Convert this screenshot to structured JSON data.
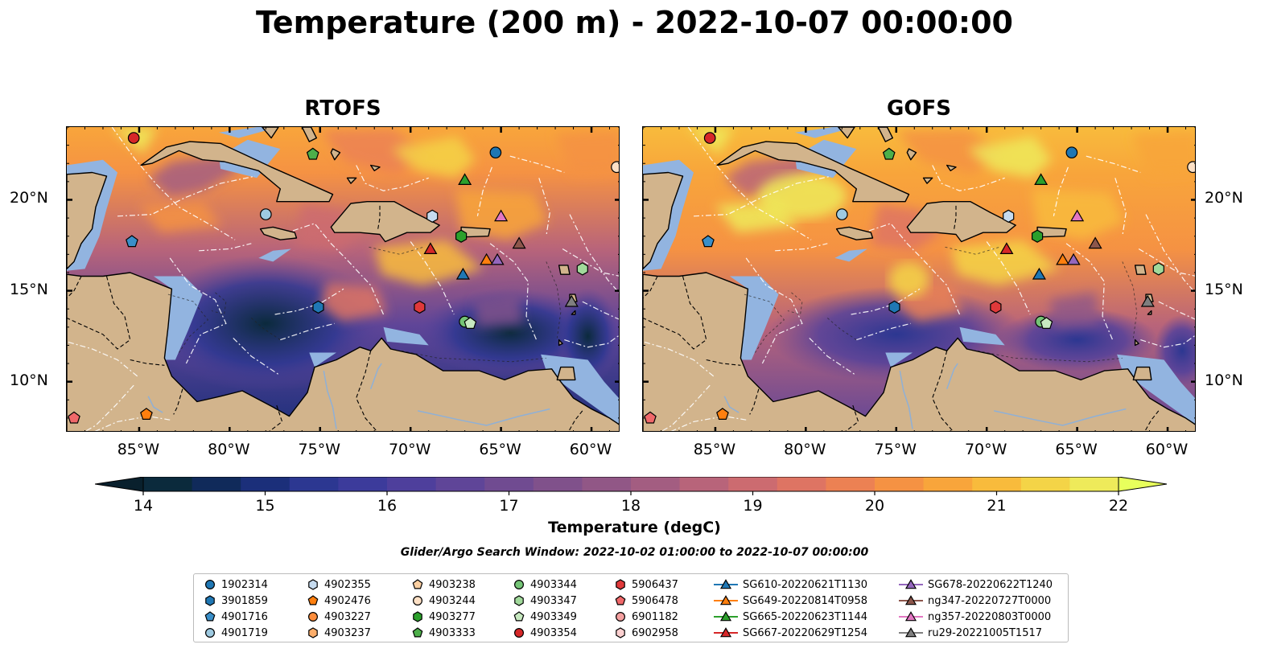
{
  "title": "Temperature (200 m) - 2022-10-07 00:00:00",
  "panels": [
    {
      "name": "RTOFS"
    },
    {
      "name": "GOFS"
    }
  ],
  "lon_ticks": [
    "85°W",
    "80°W",
    "75°W",
    "70°W",
    "65°W",
    "60°W"
  ],
  "lat_ticks": [
    "20°N",
    "15°N",
    "10°N"
  ],
  "colorbar": {
    "label": "Temperature (degC)",
    "min": 14,
    "max": 22,
    "ticks": [
      "14",
      "15",
      "16",
      "17",
      "18",
      "19",
      "20",
      "21",
      "22"
    ],
    "colors": [
      "#0b2a3c",
      "#102a5a",
      "#1b2f7a",
      "#2c3791",
      "#3c3b9b",
      "#4e3f9c",
      "#5f4598",
      "#704b91",
      "#80518b",
      "#915786",
      "#a35d81",
      "#b8647a",
      "#cc6b70",
      "#de7463",
      "#ec8153",
      "#f59243",
      "#f8a53b",
      "#f8bb3c",
      "#f4d447",
      "#eeea5a"
    ],
    "under_color": "#09202d",
    "over_color": "#e8ff5c"
  },
  "search_window": "Glider/Argo Search Window: 2022-10-02 01:00:00 to 2022-10-07 00:00:00",
  "legend": [
    {
      "label": "1902314",
      "marker": "circle",
      "color": "#1f77b4"
    },
    {
      "label": "3901859",
      "marker": "hexagon",
      "color": "#1f77b4"
    },
    {
      "label": "4901716",
      "marker": "pentagon",
      "color": "#3a8fc9"
    },
    {
      "label": "4901719",
      "marker": "circle",
      "color": "#9ecae1"
    },
    {
      "label": "4902355",
      "marker": "hexagon",
      "color": "#c6dbef"
    },
    {
      "label": "4902476",
      "marker": "pentagon",
      "color": "#ff7f0e"
    },
    {
      "label": "4903227",
      "marker": "circle",
      "color": "#fd8d3c"
    },
    {
      "label": "4903237",
      "marker": "hexagon",
      "color": "#fdae6b"
    },
    {
      "label": "4903238",
      "marker": "pentagon",
      "color": "#fdd0a2"
    },
    {
      "label": "4903244",
      "marker": "circle",
      "color": "#fde0c5"
    },
    {
      "label": "4903277",
      "marker": "hexagon",
      "color": "#2ca02c"
    },
    {
      "label": "4903333",
      "marker": "pentagon",
      "color": "#4daf4a"
    },
    {
      "label": "4903344",
      "marker": "circle",
      "color": "#74c476"
    },
    {
      "label": "4903347",
      "marker": "hexagon",
      "color": "#a1d99b"
    },
    {
      "label": "4903349",
      "marker": "pentagon",
      "color": "#c7e9c0"
    },
    {
      "label": "4903354",
      "marker": "circle",
      "color": "#d62728"
    },
    {
      "label": "5906437",
      "marker": "hexagon",
      "color": "#e0393a"
    },
    {
      "label": "5906478",
      "marker": "pentagon",
      "color": "#f0686a"
    },
    {
      "label": "6901182",
      "marker": "circle",
      "color": "#f4a0a0"
    },
    {
      "label": "6902958",
      "marker": "hexagon",
      "color": "#fcd0d0"
    },
    {
      "label": "SG610-20220621T1130",
      "marker": "triangle",
      "color": "#1f77b4"
    },
    {
      "label": "SG649-20220814T0958",
      "marker": "triangle",
      "color": "#ff7f0e"
    },
    {
      "label": "SG665-20220623T1144",
      "marker": "triangle",
      "color": "#2ca02c"
    },
    {
      "label": "SG667-20220629T1254",
      "marker": "triangle",
      "color": "#d62728"
    },
    {
      "label": "SG678-20220622T1240",
      "marker": "triangle",
      "color": "#9467bd"
    },
    {
      "label": "ng347-20220727T0000",
      "marker": "triangle",
      "color": "#8c564b"
    },
    {
      "label": "ng357-20220803T0000",
      "marker": "triangle",
      "color": "#e377c2"
    },
    {
      "label": "ru29-20221005T1517",
      "marker": "triangle",
      "color": "#7f7f7f"
    }
  ],
  "observations": [
    {
      "id": "1902314",
      "lon": -65.3,
      "lat": 22.6
    },
    {
      "id": "3901859",
      "lon": -75.1,
      "lat": 14.1
    },
    {
      "id": "4901716",
      "lon": -85.4,
      "lat": 17.7
    },
    {
      "id": "4901719",
      "lon": -78.0,
      "lat": 19.2
    },
    {
      "id": "4902355",
      "lon": -68.8,
      "lat": 19.1
    },
    {
      "id": "4902476",
      "lon": -84.6,
      "lat": 8.2
    },
    {
      "id": "4903244",
      "lon": -58.6,
      "lat": 21.8
    },
    {
      "id": "4903277",
      "lon": -67.2,
      "lat": 18.0
    },
    {
      "id": "4903333",
      "lon": -75.4,
      "lat": 22.5
    },
    {
      "id": "4903344",
      "lon": -67.0,
      "lat": 13.3
    },
    {
      "id": "4903347",
      "lon": -60.5,
      "lat": 16.2
    },
    {
      "id": "4903349",
      "lon": -66.7,
      "lat": 13.2
    },
    {
      "id": "4903354",
      "lon": -85.3,
      "lat": 23.4
    },
    {
      "id": "5906437",
      "lon": -69.5,
      "lat": 14.1
    },
    {
      "id": "5906478",
      "lon": -88.6,
      "lat": 8.0
    },
    {
      "id": "SG610-20220621T1130",
      "lon": -67.1,
      "lat": 15.9
    },
    {
      "id": "SG649-20220814T0958",
      "lon": -65.8,
      "lat": 16.7
    },
    {
      "id": "SG665-20220623T1144",
      "lon": -67.0,
      "lat": 21.1
    },
    {
      "id": "SG667-20220629T1254",
      "lon": -68.9,
      "lat": 17.3
    },
    {
      "id": "SG678-20220622T1240",
      "lon": -65.2,
      "lat": 16.7
    },
    {
      "id": "ng347-20220727T0000",
      "lon": -64.0,
      "lat": 17.6
    },
    {
      "id": "ng357-20220803T0000",
      "lon": -65.0,
      "lat": 19.1
    },
    {
      "id": "ru29-20221005T1517",
      "lon": -61.1,
      "lat": 14.4
    }
  ],
  "colors": {
    "land": "#d2b48c",
    "shelf": "#92b4e0",
    "coast": "#000000"
  }
}
